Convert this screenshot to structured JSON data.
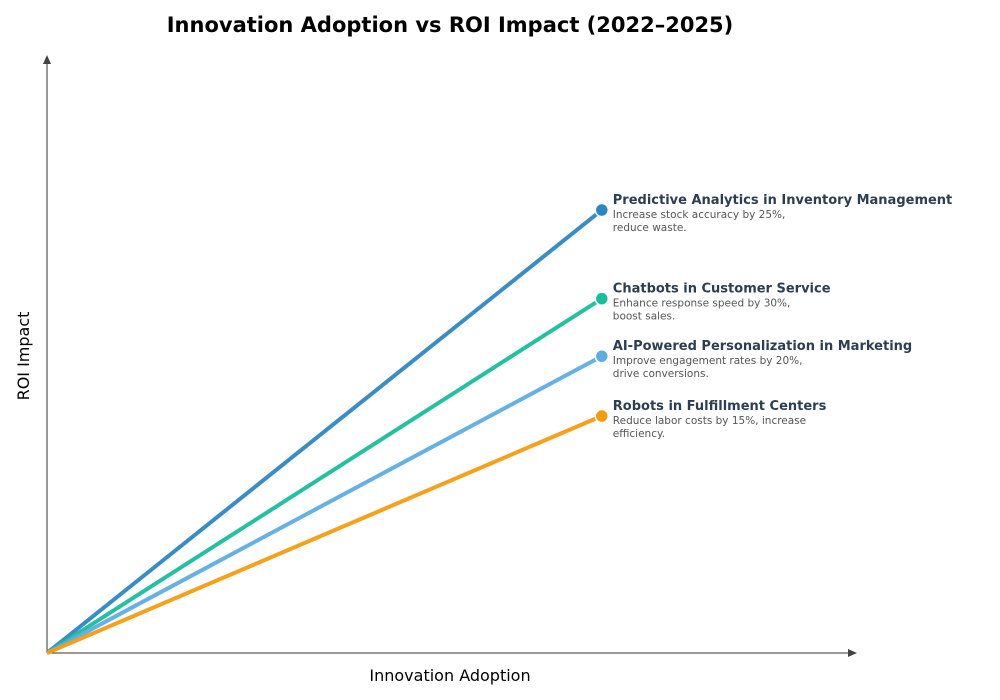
{
  "chart_data": {
    "type": "line",
    "title": "Innovation Adoption vs ROI Impact (2022–2025)",
    "xlabel": "Innovation Adoption",
    "ylabel": "ROI Impact",
    "xlim": [
      0,
      1.46
    ],
    "ylim": [
      0,
      1.35
    ],
    "grid": false,
    "ticks": false,
    "series": [
      {
        "name": "Predictive Analytics in Inventory Management",
        "description": [
          "Increase stock accuracy by 25%,",
          "reduce waste."
        ],
        "color": "#2e86c1",
        "points": [
          [
            0,
            0
          ],
          [
            1,
            1.0
          ]
        ]
      },
      {
        "name": "Chatbots in Customer Service",
        "description": [
          "Enhance response speed by 30%,",
          "boost sales."
        ],
        "color": "#1abc9c",
        "points": [
          [
            0,
            0
          ],
          [
            1,
            0.8
          ]
        ]
      },
      {
        "name": "AI-Powered Personalization in Marketing",
        "description": [
          "Improve engagement rates by 20%,",
          "drive conversions."
        ],
        "color": "#5dade2",
        "points": [
          [
            0,
            0
          ],
          [
            1,
            0.67
          ]
        ]
      },
      {
        "name": "Robots in Fulfillment Centers",
        "description": [
          "Reduce labor costs by 15%, increase",
          "efficiency."
        ],
        "color": "#f39c12",
        "points": [
          [
            0,
            0
          ],
          [
            1,
            0.535
          ]
        ]
      }
    ]
  }
}
